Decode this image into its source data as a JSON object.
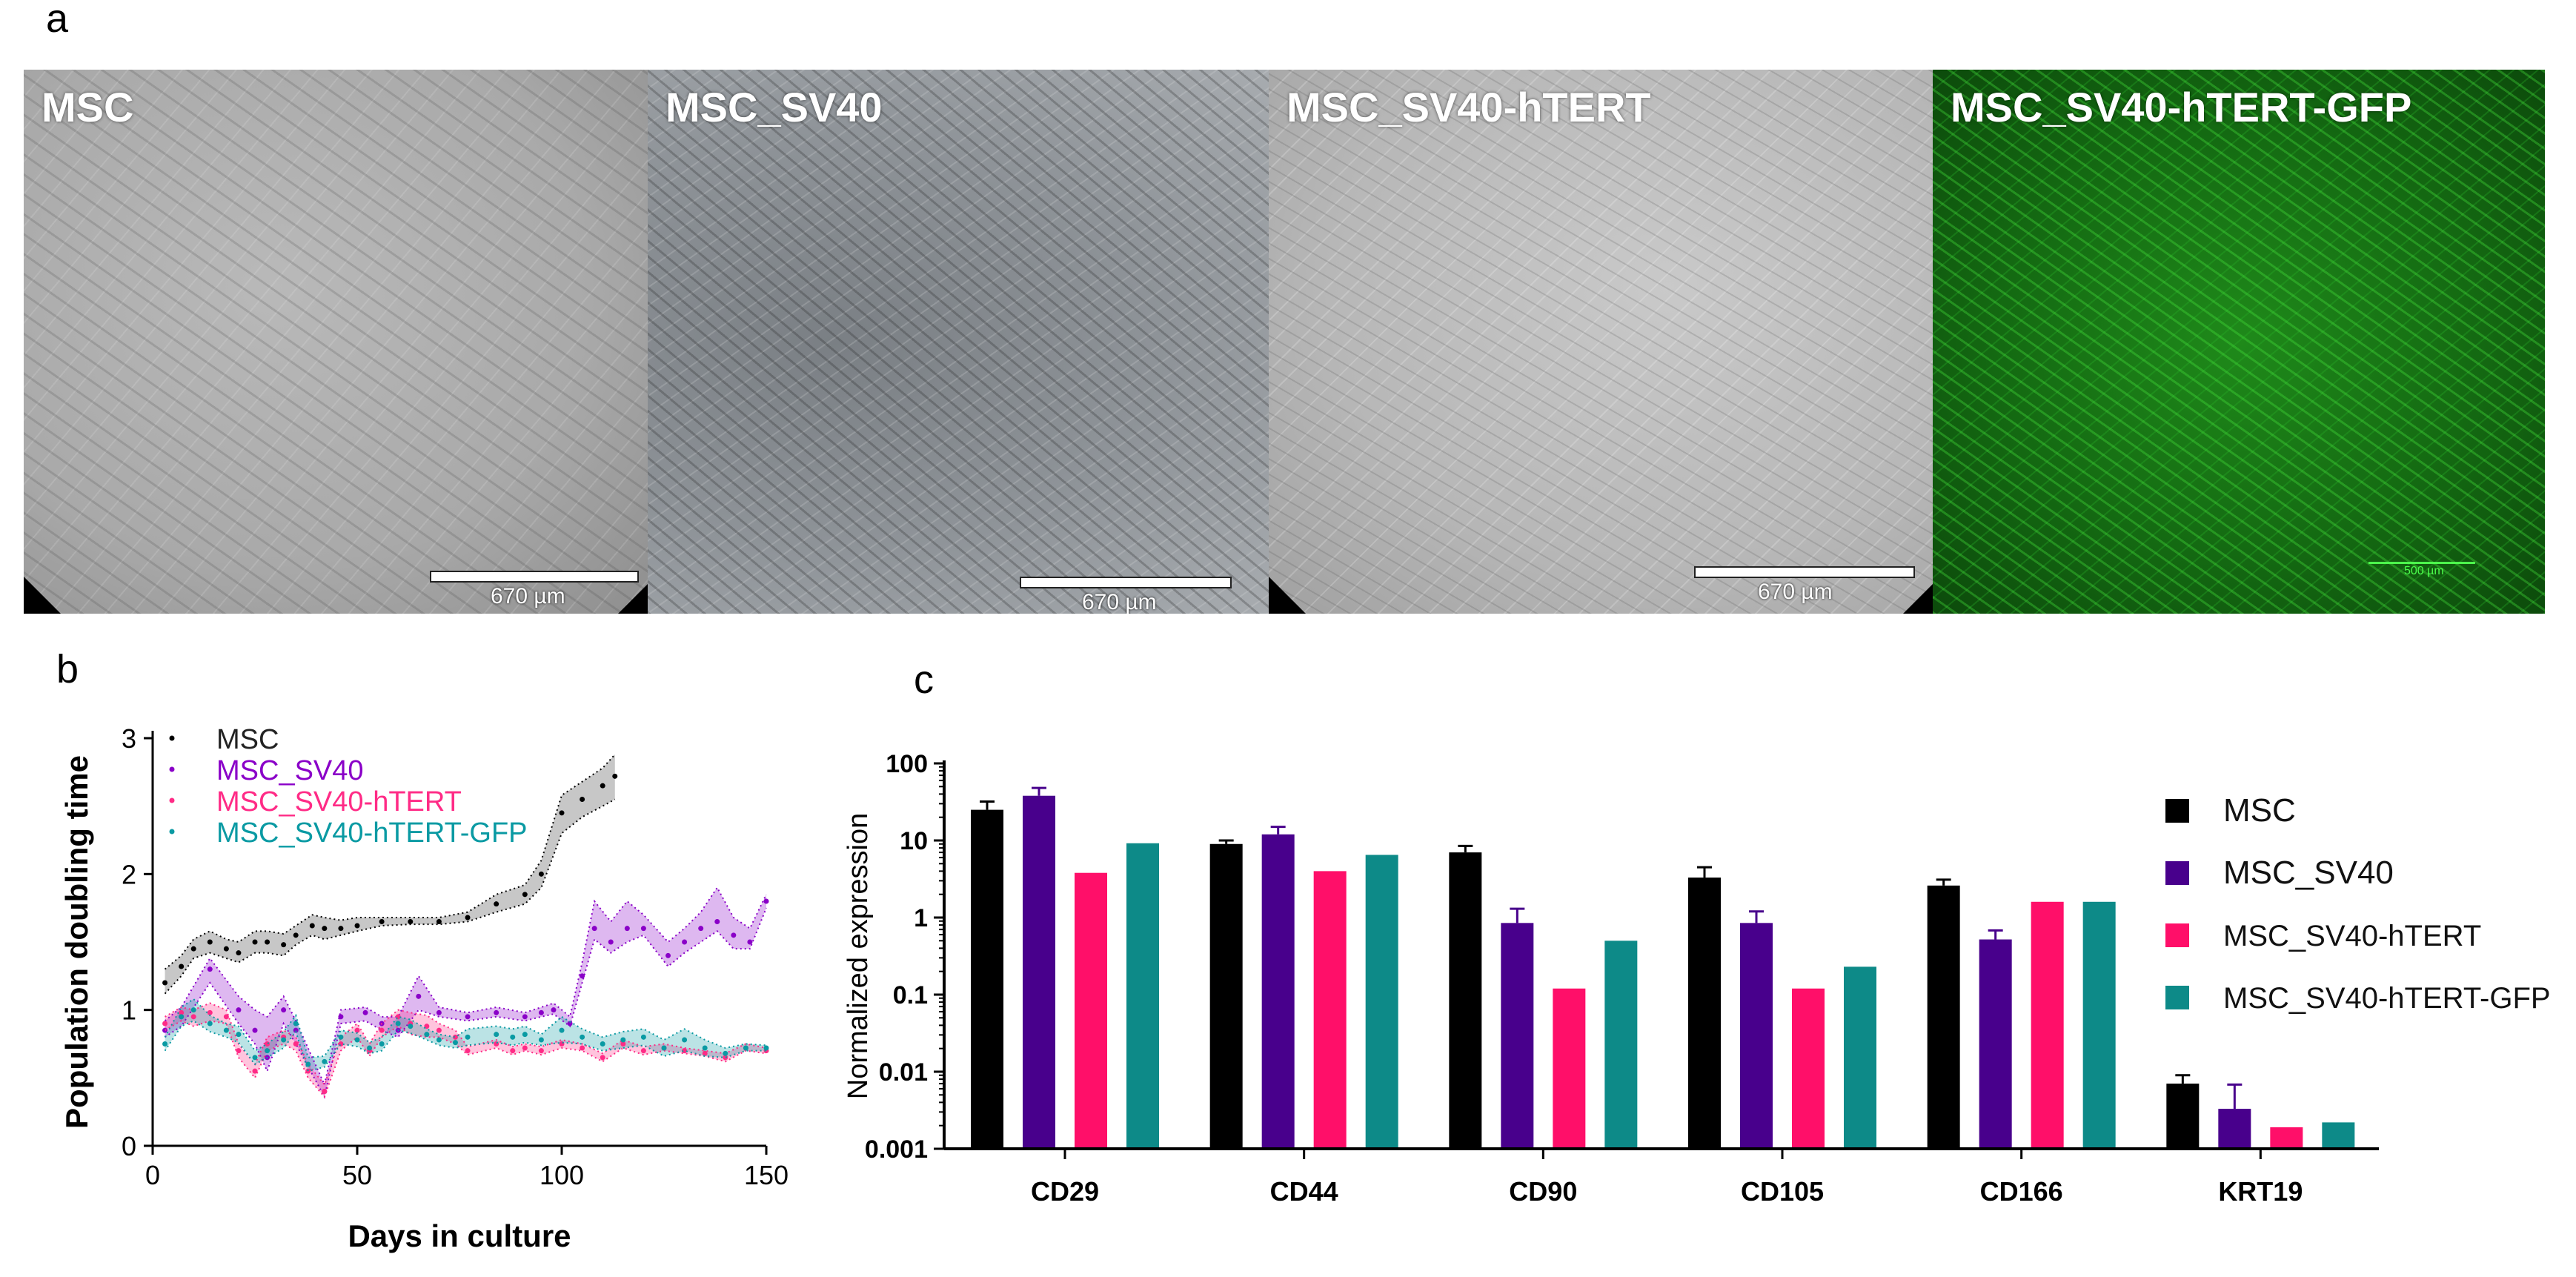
{
  "panels": {
    "a": "a",
    "b": "b",
    "c": "c"
  },
  "micrographs": [
    {
      "label": "MSC",
      "scale": "670 µm"
    },
    {
      "label": "MSC_SV40",
      "scale": "670 µm"
    },
    {
      "label": "MSC_SV40-hTERT",
      "scale": "670 µm"
    },
    {
      "label": "MSC_SV40-hTERT-GFP",
      "scale": "500 µm"
    }
  ],
  "colors": {
    "MSC": "#000000",
    "MSC_SV40": "#8a00c8",
    "MSC_SV40-hTERT": "#ff2b86",
    "MSC_SV40-hTERT-GFP": "#0a9aa3",
    "bar_MSC": "#000000",
    "bar_MSC_SV40": "#48008c",
    "bar_MSC_SV40-hTERT": "#ff0f69",
    "bar_MSC_SV40-hTERT-GFP": "#0d8a88"
  },
  "chart_data": [
    {
      "type": "line",
      "xlabel": "Days in culture",
      "ylabel": "Population doubling time",
      "xlim": [
        0,
        150
      ],
      "ylim": [
        0,
        3
      ],
      "xticks": [
        0,
        50,
        100,
        150
      ],
      "yticks": [
        0,
        1,
        2,
        3
      ],
      "legend_position": "top-left",
      "series": [
        {
          "name": "MSC",
          "x": [
            3,
            7,
            10,
            14,
            18,
            21,
            25,
            28,
            32,
            35,
            39,
            42,
            46,
            50,
            56,
            63,
            70,
            77,
            84,
            91,
            95,
            100,
            105,
            110,
            113
          ],
          "y": [
            1.2,
            1.32,
            1.45,
            1.5,
            1.45,
            1.42,
            1.5,
            1.5,
            1.48,
            1.55,
            1.62,
            1.6,
            1.6,
            1.62,
            1.65,
            1.65,
            1.65,
            1.68,
            1.78,
            1.85,
            2.0,
            2.45,
            2.55,
            2.65,
            2.72
          ],
          "lower": [
            1.12,
            1.25,
            1.38,
            1.42,
            1.38,
            1.35,
            1.42,
            1.42,
            1.4,
            1.48,
            1.55,
            1.52,
            1.55,
            1.58,
            1.62,
            1.63,
            1.63,
            1.65,
            1.72,
            1.78,
            1.9,
            2.3,
            2.42,
            2.5,
            2.55
          ],
          "upper": [
            1.3,
            1.4,
            1.52,
            1.58,
            1.52,
            1.5,
            1.58,
            1.58,
            1.56,
            1.62,
            1.7,
            1.68,
            1.66,
            1.68,
            1.68,
            1.68,
            1.68,
            1.72,
            1.85,
            1.92,
            2.1,
            2.58,
            2.68,
            2.78,
            2.88
          ]
        },
        {
          "name": "MSC_SV40",
          "x": [
            3,
            7,
            14,
            21,
            25,
            28,
            32,
            35,
            42,
            46,
            52,
            56,
            60,
            65,
            70,
            77,
            84,
            91,
            95,
            98,
            102,
            105,
            108,
            112,
            116,
            120,
            126,
            130,
            134,
            138,
            142,
            146,
            150
          ],
          "y": [
            0.85,
            0.95,
            1.3,
            1.0,
            0.85,
            0.65,
            1.0,
            0.85,
            0.4,
            0.95,
            0.98,
            0.9,
            0.85,
            1.1,
            0.98,
            0.95,
            0.98,
            0.95,
            0.98,
            1.0,
            0.9,
            1.25,
            1.6,
            1.5,
            1.6,
            1.6,
            1.4,
            1.5,
            1.6,
            1.65,
            1.55,
            1.5,
            1.8
          ],
          "lower": [
            0.8,
            0.88,
            1.2,
            0.9,
            0.75,
            0.55,
            0.9,
            0.75,
            0.36,
            0.9,
            0.92,
            0.85,
            0.8,
            1.0,
            0.95,
            0.92,
            0.95,
            0.92,
            0.95,
            0.97,
            0.88,
            1.2,
            1.52,
            1.42,
            1.5,
            1.55,
            1.32,
            1.42,
            1.5,
            1.58,
            1.45,
            1.45,
            1.75
          ],
          "upper": [
            0.92,
            1.02,
            1.38,
            1.1,
            1.0,
            0.95,
            1.1,
            0.92,
            0.45,
            1.0,
            1.02,
            0.95,
            0.95,
            1.25,
            1.02,
            0.98,
            1.02,
            0.98,
            1.02,
            1.05,
            0.95,
            1.35,
            1.8,
            1.65,
            1.8,
            1.7,
            1.5,
            1.6,
            1.72,
            1.9,
            1.68,
            1.6,
            1.85
          ]
        },
        {
          "name": "MSC_SV40-hTERT",
          "x": [
            3,
            7,
            10,
            14,
            18,
            21,
            25,
            28,
            32,
            35,
            38,
            42,
            46,
            50,
            53,
            56,
            60,
            63,
            67,
            70,
            74,
            77,
            84,
            88,
            91,
            95,
            100,
            105,
            110,
            115,
            120,
            125,
            130,
            135,
            140,
            145,
            150
          ],
          "y": [
            0.9,
            0.98,
            0.95,
            0.98,
            0.95,
            0.7,
            0.55,
            0.75,
            0.8,
            0.75,
            0.55,
            0.4,
            0.75,
            0.85,
            0.7,
            0.85,
            0.95,
            0.9,
            0.88,
            0.85,
            0.8,
            0.7,
            0.75,
            0.7,
            0.72,
            0.7,
            0.75,
            0.72,
            0.65,
            0.75,
            0.7,
            0.72,
            0.7,
            0.68,
            0.65,
            0.72,
            0.7
          ],
          "lower": [
            0.85,
            0.92,
            0.88,
            0.92,
            0.9,
            0.65,
            0.5,
            0.7,
            0.75,
            0.7,
            0.5,
            0.36,
            0.7,
            0.8,
            0.66,
            0.8,
            0.88,
            0.82,
            0.8,
            0.8,
            0.75,
            0.67,
            0.72,
            0.67,
            0.7,
            0.67,
            0.72,
            0.7,
            0.62,
            0.72,
            0.67,
            0.7,
            0.68,
            0.66,
            0.62,
            0.7,
            0.68
          ],
          "upper": [
            0.95,
            1.02,
            1.0,
            1.05,
            1.0,
            0.75,
            0.6,
            0.8,
            0.85,
            0.8,
            0.6,
            0.45,
            0.8,
            0.9,
            0.75,
            0.9,
            1.0,
            0.98,
            0.96,
            0.9,
            0.85,
            0.73,
            0.78,
            0.73,
            0.75,
            0.73,
            0.78,
            0.75,
            0.68,
            0.78,
            0.73,
            0.75,
            0.72,
            0.7,
            0.68,
            0.75,
            0.72
          ]
        },
        {
          "name": "MSC_SV40-hTERT-GFP",
          "x": [
            3,
            7,
            10,
            14,
            18,
            21,
            25,
            28,
            32,
            35,
            38,
            42,
            46,
            50,
            53,
            56,
            60,
            63,
            67,
            70,
            74,
            77,
            84,
            88,
            91,
            95,
            100,
            105,
            110,
            115,
            120,
            125,
            130,
            135,
            140,
            145,
            150
          ],
          "y": [
            0.75,
            0.95,
            1.0,
            0.9,
            0.85,
            0.82,
            0.65,
            0.7,
            0.78,
            0.9,
            0.6,
            0.62,
            0.8,
            0.78,
            0.72,
            0.75,
            0.9,
            0.88,
            0.82,
            0.78,
            0.76,
            0.8,
            0.82,
            0.8,
            0.82,
            0.78,
            0.85,
            0.8,
            0.75,
            0.78,
            0.8,
            0.72,
            0.78,
            0.72,
            0.68,
            0.72,
            0.72
          ],
          "lower": [
            0.7,
            0.88,
            0.92,
            0.84,
            0.8,
            0.76,
            0.6,
            0.65,
            0.72,
            0.84,
            0.55,
            0.58,
            0.75,
            0.73,
            0.68,
            0.7,
            0.85,
            0.83,
            0.78,
            0.74,
            0.72,
            0.74,
            0.76,
            0.74,
            0.76,
            0.74,
            0.76,
            0.75,
            0.7,
            0.72,
            0.74,
            0.66,
            0.7,
            0.66,
            0.65,
            0.7,
            0.7
          ],
          "upper": [
            0.8,
            1.02,
            1.08,
            0.96,
            0.9,
            0.88,
            0.7,
            0.75,
            0.84,
            0.96,
            0.65,
            0.66,
            0.85,
            0.83,
            0.76,
            0.8,
            0.95,
            0.93,
            0.86,
            0.82,
            0.8,
            0.86,
            0.88,
            0.86,
            0.88,
            0.82,
            0.95,
            0.86,
            0.8,
            0.84,
            0.86,
            0.78,
            0.86,
            0.78,
            0.72,
            0.75,
            0.74
          ]
        }
      ]
    },
    {
      "type": "bar",
      "ylabel": "Normalized expression",
      "yscale": "log",
      "ylim": [
        0.001,
        100
      ],
      "yticks": [
        0.001,
        0.01,
        0.1,
        1,
        10,
        100
      ],
      "ytick_labels": [
        "0.001",
        "0.01",
        "0.1",
        "1",
        "10",
        "100"
      ],
      "categories": [
        "CD29",
        "CD44",
        "CD90",
        "CD105",
        "CD166",
        "KRT19"
      ],
      "legend_position": "right",
      "series": [
        {
          "name": "MSC",
          "values": [
            25,
            9,
            7,
            3.3,
            2.6,
            0.007
          ],
          "errors": [
            32,
            10,
            8.5,
            4.5,
            3.1,
            0.009
          ]
        },
        {
          "name": "MSC_SV40",
          "values": [
            38,
            12,
            0.85,
            0.85,
            0.52,
            0.0033
          ],
          "errors": [
            48,
            15,
            1.3,
            1.2,
            0.68,
            0.0068
          ]
        },
        {
          "name": "MSC_SV40-hTERT",
          "values": [
            3.8,
            4.0,
            0.12,
            0.12,
            1.6,
            0.0019
          ],
          "errors": [
            null,
            null,
            null,
            null,
            null,
            null
          ]
        },
        {
          "name": "MSC_SV40-hTERT-GFP",
          "values": [
            9.2,
            6.5,
            0.5,
            0.23,
            1.6,
            0.0022
          ],
          "errors": [
            null,
            null,
            null,
            null,
            null,
            null
          ]
        }
      ]
    }
  ]
}
